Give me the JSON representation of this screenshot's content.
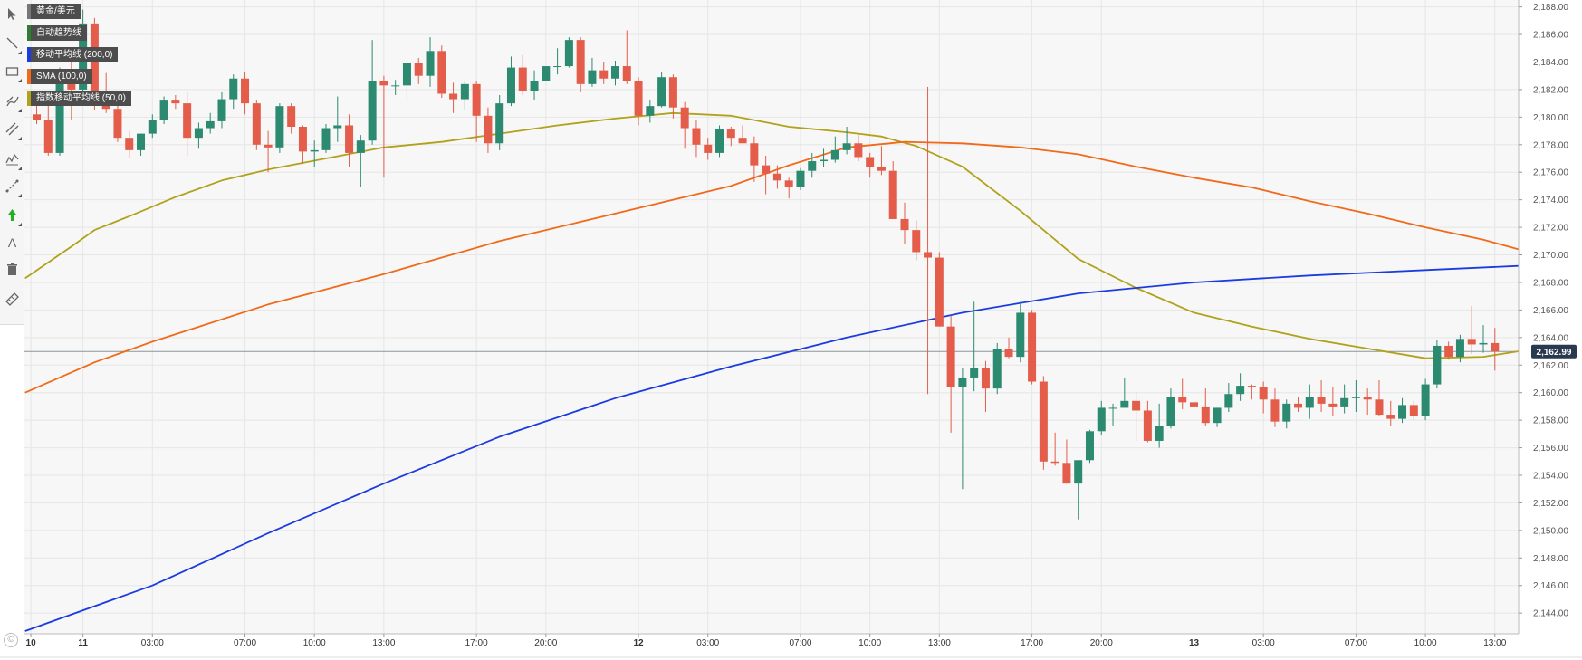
{
  "instrument": "黄金/美元",
  "legend": [
    {
      "label": "黄金/美元",
      "color": "#777777"
    },
    {
      "label": "自动趋势线",
      "color": "#2e7d32"
    },
    {
      "label": "移动平均线 (200,0)",
      "color": "#1b3be0"
    },
    {
      "label": "SMA (100,0)",
      "color": "#f06a1a"
    },
    {
      "label": "指数移动平均线 (50,0)",
      "color": "#b0a21a"
    }
  ],
  "toolbar": [
    {
      "name": "cursor-icon"
    },
    {
      "name": "line-tool-icon"
    },
    {
      "name": "rectangle-tool-icon"
    },
    {
      "name": "brush-tool-icon"
    },
    {
      "name": "parallel-channel-icon"
    },
    {
      "name": "pattern-tool-icon"
    },
    {
      "name": "measure-tool-icon"
    },
    {
      "name": "arrow-up-icon"
    },
    {
      "name": "text-tool-icon",
      "label": "A"
    },
    {
      "name": "trash-icon"
    },
    {
      "name": "ruler-icon"
    }
  ],
  "copyright_symbol": "©",
  "chart_data": {
    "type": "candlestick",
    "colors": {
      "up": "#2b8a70",
      "down": "#e35d4a",
      "ma200": "#1b3be0",
      "sma100": "#f06a1a",
      "ema50": "#b0a21a",
      "price_line": "#8a959c",
      "price_label_bg": "#29394f"
    },
    "ylim": [
      2142.5,
      2188.5
    ],
    "y_ticks": [
      "2,144.00",
      "2,146.00",
      "2,148.00",
      "2,150.00",
      "2,152.00",
      "2,154.00",
      "2,156.00",
      "2,158.00",
      "2,160.00",
      "2,162.00",
      "2,164.00",
      "2,166.00",
      "2,168.00",
      "2,170.00",
      "2,172.00",
      "2,174.00",
      "2,176.00",
      "2,178.00",
      "2,180.00",
      "2,182.00",
      "2,184.00",
      "2,186.00",
      "2,188.00"
    ],
    "x_ticks": [
      {
        "label": "10",
        "bold": true,
        "i": -0.5
      },
      {
        "label": "11",
        "bold": true,
        "i": 4
      },
      {
        "label": "03:00",
        "bold": false,
        "i": 10
      },
      {
        "label": "07:00",
        "bold": false,
        "i": 18
      },
      {
        "label": "10:00",
        "bold": false,
        "i": 24
      },
      {
        "label": "13:00",
        "bold": false,
        "i": 30
      },
      {
        "label": "17:00",
        "bold": false,
        "i": 38
      },
      {
        "label": "20:00",
        "bold": false,
        "i": 44
      },
      {
        "label": "12",
        "bold": true,
        "i": 52
      },
      {
        "label": "03:00",
        "bold": false,
        "i": 58
      },
      {
        "label": "07:00",
        "bold": false,
        "i": 66
      },
      {
        "label": "10:00",
        "bold": false,
        "i": 72
      },
      {
        "label": "13:00",
        "bold": false,
        "i": 78
      },
      {
        "label": "17:00",
        "bold": false,
        "i": 86
      },
      {
        "label": "20:00",
        "bold": false,
        "i": 92
      },
      {
        "label": "13",
        "bold": true,
        "i": 100
      },
      {
        "label": "03:00",
        "bold": false,
        "i": 106
      },
      {
        "label": "07:00",
        "bold": false,
        "i": 114
      },
      {
        "label": "10:00",
        "bold": false,
        "i": 120
      },
      {
        "label": "13:00",
        "bold": false,
        "i": 126
      }
    ],
    "last_price": 2162.99,
    "last_price_label": "2,162.99",
    "ohlc": [
      [
        2180.2,
        2181.2,
        2179.5,
        2179.8
      ],
      [
        2179.8,
        2181.5,
        2177.2,
        2177.4
      ],
      [
        2177.4,
        2183.6,
        2177.2,
        2183.2
      ],
      [
        2183.2,
        2184.0,
        2179.8,
        2182.0
      ],
      [
        2182.0,
        2187.8,
        2181.2,
        2186.8
      ],
      [
        2186.8,
        2187.2,
        2180.5,
        2181.2
      ],
      [
        2181.2,
        2183.2,
        2180.3,
        2180.6
      ],
      [
        2180.6,
        2181.5,
        2178.2,
        2178.5
      ],
      [
        2178.5,
        2179.0,
        2177.0,
        2177.6
      ],
      [
        2177.6,
        2178.8,
        2177.2,
        2178.8
      ],
      [
        2178.8,
        2180.2,
        2178.5,
        2179.8
      ],
      [
        2179.8,
        2181.5,
        2179.5,
        2181.2
      ],
      [
        2181.2,
        2181.6,
        2180.6,
        2181.0
      ],
      [
        2181.0,
        2181.8,
        2177.2,
        2178.5
      ],
      [
        2178.5,
        2179.6,
        2177.7,
        2179.2
      ],
      [
        2179.2,
        2180.3,
        2178.8,
        2179.7
      ],
      [
        2179.7,
        2181.8,
        2179.2,
        2181.3
      ],
      [
        2181.3,
        2183.1,
        2180.6,
        2182.8
      ],
      [
        2182.8,
        2183.3,
        2180.2,
        2181.0
      ],
      [
        2181.0,
        2181.2,
        2177.6,
        2178.0
      ],
      [
        2178.0,
        2179.0,
        2176.0,
        2177.8
      ],
      [
        2177.8,
        2181.0,
        2177.4,
        2180.8
      ],
      [
        2180.8,
        2181.0,
        2178.8,
        2179.3
      ],
      [
        2179.3,
        2179.4,
        2176.6,
        2177.5
      ],
      [
        2177.5,
        2178.3,
        2176.4,
        2177.6
      ],
      [
        2177.6,
        2179.5,
        2177.4,
        2179.2
      ],
      [
        2179.2,
        2181.5,
        2178.2,
        2179.4
      ],
      [
        2179.4,
        2180.2,
        2176.4,
        2177.4
      ],
      [
        2177.4,
        2178.7,
        2174.9,
        2178.3
      ],
      [
        2178.3,
        2185.6,
        2178.0,
        2182.6
      ],
      [
        2182.6,
        2183.0,
        2175.6,
        2182.3
      ],
      [
        2182.3,
        2182.7,
        2181.6,
        2182.3
      ],
      [
        2182.3,
        2183.9,
        2181.1,
        2183.9
      ],
      [
        2183.9,
        2184.3,
        2182.4,
        2183.0
      ],
      [
        2183.0,
        2185.8,
        2182.2,
        2184.8
      ],
      [
        2184.8,
        2185.2,
        2181.4,
        2181.7
      ],
      [
        2181.7,
        2182.5,
        2180.3,
        2181.3
      ],
      [
        2181.3,
        2182.6,
        2180.5,
        2182.4
      ],
      [
        2182.4,
        2182.6,
        2178.2,
        2180.1
      ],
      [
        2180.1,
        2180.7,
        2177.4,
        2178.1
      ],
      [
        2178.1,
        2181.6,
        2177.6,
        2181.0
      ],
      [
        2181.0,
        2184.4,
        2180.8,
        2183.6
      ],
      [
        2183.6,
        2184.5,
        2181.6,
        2181.9
      ],
      [
        2181.9,
        2183.4,
        2181.2,
        2182.6
      ],
      [
        2182.6,
        2183.6,
        2182.6,
        2183.7
      ],
      [
        2183.7,
        2185.0,
        2183.1,
        2183.7
      ],
      [
        2183.7,
        2185.8,
        2183.6,
        2185.6
      ],
      [
        2185.6,
        2185.8,
        2181.8,
        2182.4
      ],
      [
        2182.4,
        2184.3,
        2182.2,
        2183.4
      ],
      [
        2183.4,
        2184.0,
        2182.4,
        2182.8
      ],
      [
        2182.8,
        2184.1,
        2182.3,
        2183.7
      ],
      [
        2183.7,
        2186.3,
        2182.4,
        2182.6
      ],
      [
        2182.6,
        2182.9,
        2179.4,
        2180.1
      ],
      [
        2180.1,
        2181.2,
        2179.6,
        2180.8
      ],
      [
        2180.8,
        2183.3,
        2180.7,
        2182.9
      ],
      [
        2182.9,
        2183.1,
        2179.9,
        2180.7
      ],
      [
        2180.7,
        2181.1,
        2177.7,
        2179.2
      ],
      [
        2179.2,
        2179.8,
        2177.1,
        2178.0
      ],
      [
        2178.0,
        2178.5,
        2176.9,
        2177.4
      ],
      [
        2177.4,
        2179.4,
        2177.1,
        2179.1
      ],
      [
        2179.1,
        2179.3,
        2177.9,
        2178.5
      ],
      [
        2178.5,
        2179.4,
        2178.2,
        2178.1
      ],
      [
        2178.1,
        2178.6,
        2175.3,
        2176.5
      ],
      [
        2176.5,
        2177.2,
        2174.4,
        2175.9
      ],
      [
        2175.9,
        2176.5,
        2174.8,
        2175.4
      ],
      [
        2175.4,
        2175.6,
        2174.1,
        2174.9
      ],
      [
        2174.9,
        2176.3,
        2174.7,
        2176.1
      ],
      [
        2176.1,
        2177.4,
        2175.6,
        2176.8
      ],
      [
        2176.8,
        2177.7,
        2176.4,
        2176.9
      ],
      [
        2176.9,
        2178.6,
        2176.7,
        2177.6
      ],
      [
        2177.6,
        2179.3,
        2177.3,
        2178.1
      ],
      [
        2178.1,
        2178.7,
        2176.8,
        2177.1
      ],
      [
        2177.1,
        2177.4,
        2175.6,
        2176.4
      ],
      [
        2176.4,
        2177.9,
        2175.8,
        2176.1
      ],
      [
        2176.1,
        2176.8,
        2172.6,
        2172.6
      ],
      [
        2172.6,
        2173.8,
        2170.8,
        2171.8
      ],
      [
        2171.8,
        2172.5,
        2169.6,
        2170.2
      ],
      [
        2170.2,
        2182.2,
        2159.9,
        2169.8
      ],
      [
        2169.8,
        2170.2,
        2164.8,
        2164.8
      ],
      [
        2164.8,
        2165.6,
        2157.1,
        2160.4
      ],
      [
        2160.4,
        2161.8,
        2153.0,
        2161.1
      ],
      [
        2161.1,
        2166.6,
        2160.1,
        2161.8
      ],
      [
        2161.8,
        2162.3,
        2158.6,
        2160.3
      ],
      [
        2160.3,
        2163.6,
        2159.9,
        2163.2
      ],
      [
        2163.2,
        2164.0,
        2162.5,
        2162.6
      ],
      [
        2162.6,
        2166.6,
        2162.2,
        2165.8
      ],
      [
        2165.8,
        2166.0,
        2160.6,
        2160.8
      ],
      [
        2160.8,
        2161.2,
        2154.4,
        2155.0
      ],
      [
        2155.0,
        2157.1,
        2154.7,
        2154.9
      ],
      [
        2154.9,
        2156.6,
        2153.4,
        2153.4
      ],
      [
        2153.4,
        2155.0,
        2150.8,
        2155.1
      ],
      [
        2155.1,
        2157.3,
        2154.9,
        2157.2
      ],
      [
        2157.2,
        2159.4,
        2156.9,
        2158.9
      ],
      [
        2158.9,
        2159.2,
        2157.6,
        2158.9
      ],
      [
        2158.9,
        2161.1,
        2158.9,
        2159.4
      ],
      [
        2159.4,
        2160.0,
        2156.5,
        2158.7
      ],
      [
        2158.7,
        2159.4,
        2156.4,
        2156.5
      ],
      [
        2156.5,
        2159.2,
        2156.0,
        2157.6
      ],
      [
        2157.6,
        2160.3,
        2157.4,
        2159.7
      ],
      [
        2159.7,
        2161.0,
        2158.8,
        2159.3
      ],
      [
        2159.3,
        2159.4,
        2158.1,
        2159.0
      ],
      [
        2159.0,
        2160.3,
        2157.6,
        2157.8
      ],
      [
        2157.8,
        2158.9,
        2157.5,
        2158.9
      ],
      [
        2158.9,
        2160.7,
        2158.6,
        2159.9
      ],
      [
        2159.9,
        2161.4,
        2159.4,
        2160.5
      ],
      [
        2160.5,
        2160.6,
        2159.5,
        2160.4
      ],
      [
        2160.4,
        2160.8,
        2158.5,
        2159.5
      ],
      [
        2159.5,
        2160.3,
        2157.5,
        2157.9
      ],
      [
        2157.9,
        2159.5,
        2157.4,
        2159.2
      ],
      [
        2159.2,
        2159.7,
        2158.6,
        2158.9
      ],
      [
        2158.9,
        2160.6,
        2158.1,
        2159.7
      ],
      [
        2159.7,
        2160.9,
        2158.6,
        2159.2
      ],
      [
        2159.2,
        2160.4,
        2158.3,
        2159.0
      ],
      [
        2159.0,
        2160.6,
        2158.5,
        2159.6
      ],
      [
        2159.6,
        2160.9,
        2158.6,
        2159.7
      ],
      [
        2159.7,
        2160.3,
        2158.4,
        2159.5
      ],
      [
        2159.5,
        2160.9,
        2158.3,
        2158.4
      ],
      [
        2158.4,
        2159.4,
        2157.6,
        2158.1
      ],
      [
        2158.1,
        2159.6,
        2157.8,
        2159.1
      ],
      [
        2159.1,
        2159.4,
        2158.0,
        2158.3
      ],
      [
        2158.3,
        2161.0,
        2158.0,
        2160.6
      ],
      [
        2160.6,
        2163.8,
        2160.3,
        2163.4
      ],
      [
        2163.4,
        2163.7,
        2162.4,
        2162.6
      ],
      [
        2162.6,
        2164.2,
        2162.2,
        2163.9
      ],
      [
        2163.9,
        2166.3,
        2162.8,
        2163.5
      ],
      [
        2163.5,
        2164.9,
        2162.9,
        2163.6
      ],
      [
        2163.6,
        2164.7,
        2161.6,
        2162.99
      ]
    ],
    "series": [
      {
        "name": "移动平均线 (200,0)",
        "x": [
          -1,
          10,
          20,
          30,
          40,
          50,
          60,
          70,
          80,
          90,
          100,
          110,
          120,
          130
        ],
        "values": [
          2142.7,
          2146.0,
          2149.8,
          2153.4,
          2156.8,
          2159.6,
          2161.9,
          2164.0,
          2165.8,
          2167.2,
          2168.0,
          2168.5,
          2168.9,
          2169.2
        ]
      },
      {
        "name": "SMA (100,0)",
        "x": [
          -1,
          5,
          10,
          20,
          30,
          40,
          50,
          60,
          65,
          70,
          75,
          80,
          85,
          90,
          95,
          100,
          105,
          110,
          115,
          120,
          125,
          130
        ],
        "values": [
          2160.0,
          2162.2,
          2163.7,
          2166.4,
          2168.6,
          2171.0,
          2173.0,
          2175.0,
          2176.5,
          2177.8,
          2178.2,
          2178.1,
          2177.8,
          2177.3,
          2176.4,
          2175.6,
          2174.9,
          2173.9,
          2173.0,
          2172.0,
          2171.1,
          2170.4
        ]
      },
      {
        "name": "指数移动平均线 (50,0)",
        "x": [
          -1,
          3,
          5,
          8,
          12,
          16,
          20,
          25,
          30,
          35,
          40,
          45,
          50,
          55,
          60,
          65,
          70,
          73,
          76,
          80,
          85,
          90,
          95,
          100,
          105,
          110,
          115,
          120,
          125,
          130
        ],
        "values": [
          2168.3,
          2170.6,
          2171.8,
          2172.8,
          2174.2,
          2175.4,
          2176.2,
          2177.0,
          2177.8,
          2178.2,
          2178.8,
          2179.4,
          2179.9,
          2180.3,
          2180.1,
          2179.3,
          2178.9,
          2178.6,
          2177.9,
          2176.4,
          2173.2,
          2169.7,
          2167.6,
          2165.8,
          2164.8,
          2163.9,
          2163.2,
          2162.5,
          2162.6,
          2163.0
        ]
      }
    ]
  }
}
